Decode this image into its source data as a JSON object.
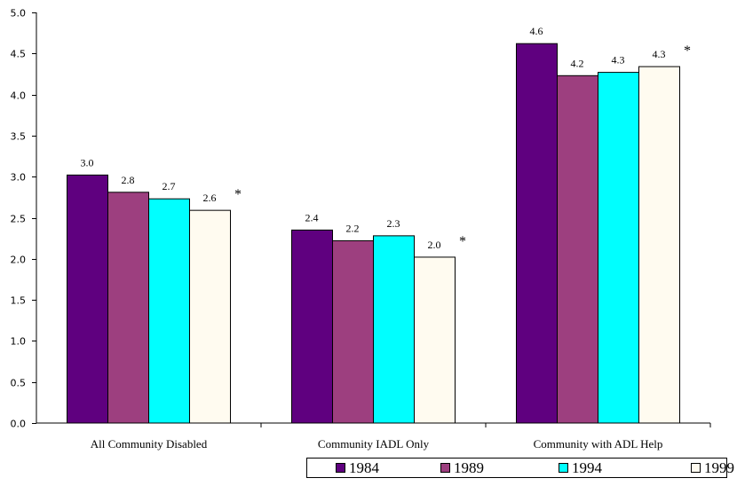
{
  "chart_data": {
    "type": "bar",
    "categories": [
      "All Community Disabled",
      "Community IADL Only",
      "Community with ADL Help"
    ],
    "series": [
      {
        "name": "1984",
        "color": "#5f007f",
        "values": [
          3.02,
          2.35,
          4.62
        ],
        "labels": [
          "3.0",
          "2.4",
          "4.6"
        ]
      },
      {
        "name": "1989",
        "color": "#9d3f7f",
        "values": [
          2.81,
          2.22,
          4.23
        ],
        "labels": [
          "2.8",
          "2.2",
          "4.2"
        ]
      },
      {
        "name": "1994",
        "color": "#00ffff",
        "values": [
          2.73,
          2.28,
          4.27
        ],
        "labels": [
          "2.7",
          "2.3",
          "4.3"
        ]
      },
      {
        "name": "1999",
        "color": "#fffbf0",
        "values": [
          2.59,
          2.02,
          4.34
        ],
        "labels": [
          "2.6",
          "2.0",
          "4.3"
        ]
      }
    ],
    "annotations": [
      "*",
      "*",
      "*"
    ],
    "ylim": [
      0,
      5.0
    ],
    "yticks": [
      "0.0",
      "0.5",
      "1.0",
      "1.5",
      "2.0",
      "2.5",
      "3.0",
      "3.5",
      "4.0",
      "4.5",
      "5.0"
    ],
    "grid": false,
    "legend": "bottom-right"
  }
}
